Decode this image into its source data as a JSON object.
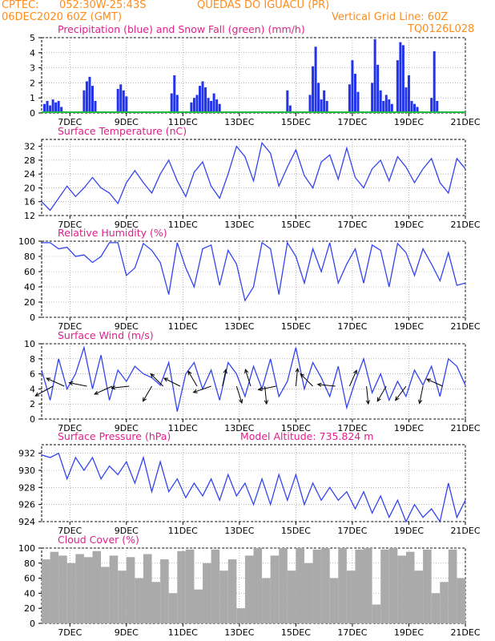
{
  "header": {
    "line1_left": "CPTEC:",
    "coords": "052:30W-25:43S",
    "location": "QUEDAS DO IGUACU (PR)",
    "run_date": "06DEC2020 60Z (GMT)",
    "grid_note": "Vertical Grid Line: 60Z",
    "model_code": "TQ0126L028"
  },
  "colors": {
    "header": "#ff8c1a",
    "title": "#e0208a",
    "line": "#3344ee",
    "precip_bar": "#2233ee",
    "snow": "#22bb44",
    "cloud": "#aaaaaa",
    "wind_arrow": "#000000",
    "grid": "#888888"
  },
  "x_axis": {
    "ticks": [
      "7DEC",
      "9DEC",
      "11DEC",
      "13DEC",
      "15DEC",
      "17DEC",
      "19DEC",
      "21DEC"
    ],
    "range_days": [
      6,
      21
    ]
  },
  "chart_data": [
    {
      "id": "precip",
      "type": "bar",
      "title": "Precipitation (blue) and Snow Fall (green) (mm/h)",
      "ylim": [
        0,
        5
      ],
      "yticks": [
        "0",
        "1",
        "2",
        "3",
        "4",
        "5"
      ],
      "grid": true,
      "series": [
        {
          "name": "Precipitation",
          "x": [
            6.1,
            6.2,
            6.3,
            6.4,
            6.5,
            6.6,
            6.7,
            7.5,
            7.6,
            7.7,
            7.8,
            7.9,
            8.7,
            8.8,
            8.9,
            9.0,
            10.6,
            10.7,
            10.8,
            11.3,
            11.4,
            11.5,
            11.6,
            11.7,
            11.8,
            11.9,
            12.0,
            12.1,
            12.2,
            12.3,
            14.7,
            14.8,
            15.5,
            15.6,
            15.7,
            15.8,
            15.9,
            16.0,
            16.1,
            16.9,
            17.0,
            17.1,
            17.2,
            17.7,
            17.8,
            17.9,
            18.0,
            18.1,
            18.2,
            18.3,
            18.4,
            18.6,
            18.7,
            18.8,
            18.9,
            19.0,
            19.1,
            19.2,
            19.3,
            19.8,
            19.9,
            20.0
          ],
          "values": [
            0.6,
            0.8,
            0.5,
            0.9,
            0.7,
            0.8,
            0.4,
            1.5,
            2.1,
            2.4,
            1.8,
            0.8,
            1.6,
            1.9,
            1.5,
            1.1,
            1.3,
            2.5,
            1.2,
            0.7,
            1.0,
            1.2,
            1.8,
            2.1,
            1.7,
            1.0,
            0.8,
            1.3,
            0.9,
            0.6,
            1.5,
            0.5,
            1.2,
            3.1,
            4.4,
            2.0,
            0.9,
            1.5,
            0.8,
            1.9,
            3.5,
            2.6,
            1.4,
            2.0,
            4.9,
            3.2,
            1.5,
            0.8,
            1.2,
            0.9,
            0.6,
            3.5,
            4.7,
            4.5,
            1.7,
            2.5,
            0.8,
            0.6,
            0.4,
            1.0,
            4.1,
            0.8
          ]
        },
        {
          "name": "Snow Fall",
          "x": [],
          "values": []
        }
      ]
    },
    {
      "id": "temperature",
      "type": "line",
      "title": "Surface Temperature (nC)",
      "ylim": [
        12,
        34
      ],
      "yticks": [
        "12",
        "16",
        "20",
        "24",
        "28",
        "32"
      ],
      "grid": true,
      "series": [
        {
          "name": "",
          "x": [
            6.0,
            6.3,
            6.6,
            6.9,
            7.2,
            7.5,
            7.8,
            8.1,
            8.4,
            8.7,
            9.0,
            9.3,
            9.6,
            9.9,
            10.2,
            10.5,
            10.8,
            11.1,
            11.4,
            11.7,
            12.0,
            12.3,
            12.6,
            12.9,
            13.2,
            13.5,
            13.8,
            14.1,
            14.4,
            14.7,
            15.0,
            15.3,
            15.6,
            15.9,
            16.2,
            16.5,
            16.8,
            17.1,
            17.4,
            17.7,
            18.0,
            18.3,
            18.6,
            18.9,
            19.2,
            19.5,
            19.8,
            20.1,
            20.4,
            20.7,
            21.0
          ],
          "values": [
            16.0,
            13.5,
            17.0,
            20.5,
            17.5,
            20.0,
            23.0,
            20.0,
            18.5,
            15.5,
            21.5,
            25.0,
            21.5,
            18.5,
            24.0,
            28.0,
            22.0,
            17.5,
            24.5,
            27.5,
            20.5,
            17.0,
            24.0,
            32.0,
            29.0,
            22.0,
            33.0,
            30.0,
            20.5,
            26.0,
            31.0,
            23.5,
            20.0,
            27.5,
            29.5,
            22.5,
            31.5,
            23.0,
            20.0,
            25.5,
            28.0,
            22.0,
            29.0,
            26.0,
            21.5,
            25.5,
            28.5,
            21.5,
            18.5,
            28.5,
            25.5
          ]
        }
      ]
    },
    {
      "id": "humidity",
      "type": "line",
      "title": "Relative Humidity (%)",
      "ylim": [
        0,
        100
      ],
      "yticks": [
        "0",
        "20",
        "40",
        "60",
        "80",
        "100"
      ],
      "grid": true,
      "series": [
        {
          "name": "",
          "x": [
            6.0,
            6.3,
            6.6,
            6.9,
            7.2,
            7.5,
            7.8,
            8.1,
            8.4,
            8.7,
            9.0,
            9.3,
            9.6,
            9.9,
            10.2,
            10.5,
            10.8,
            11.1,
            11.4,
            11.7,
            12.0,
            12.3,
            12.6,
            12.9,
            13.2,
            13.5,
            13.8,
            14.1,
            14.4,
            14.7,
            15.0,
            15.3,
            15.6,
            15.9,
            16.2,
            16.5,
            16.8,
            17.1,
            17.4,
            17.7,
            18.0,
            18.3,
            18.6,
            18.9,
            19.2,
            19.5,
            19.8,
            20.1,
            20.4,
            20.7,
            21.0
          ],
          "values": [
            98,
            98,
            90,
            92,
            80,
            82,
            72,
            80,
            98,
            98,
            55,
            65,
            97,
            88,
            72,
            30,
            98,
            65,
            40,
            90,
            95,
            42,
            88,
            70,
            22,
            40,
            98,
            90,
            30,
            98,
            80,
            45,
            90,
            60,
            98,
            45,
            70,
            90,
            45,
            95,
            88,
            40,
            97,
            85,
            55,
            90,
            70,
            48,
            85,
            42,
            45
          ]
        }
      ]
    },
    {
      "id": "wind",
      "type": "line",
      "title": "Surface Wind (m/s)",
      "ylim": [
        0,
        10
      ],
      "yticks": [
        "0",
        "2",
        "4",
        "6",
        "8",
        "10"
      ],
      "grid": true,
      "series": [
        {
          "name": "",
          "x": [
            6.0,
            6.3,
            6.6,
            6.9,
            7.2,
            7.5,
            7.8,
            8.1,
            8.4,
            8.7,
            9.0,
            9.3,
            9.6,
            9.9,
            10.2,
            10.5,
            10.8,
            11.1,
            11.4,
            11.7,
            12.0,
            12.3,
            12.6,
            12.9,
            13.2,
            13.5,
            13.8,
            14.1,
            14.4,
            14.7,
            15.0,
            15.3,
            15.6,
            15.9,
            16.2,
            16.5,
            16.8,
            17.1,
            17.4,
            17.7,
            18.0,
            18.3,
            18.6,
            18.9,
            19.2,
            19.5,
            19.8,
            20.1,
            20.4,
            20.7,
            21.0
          ],
          "values": [
            6.5,
            2.5,
            8.0,
            4.0,
            6.0,
            9.5,
            4.0,
            8.5,
            2.5,
            6.5,
            5.0,
            7.0,
            6.0,
            5.5,
            4.5,
            7.5,
            1.0,
            6.0,
            7.5,
            4.0,
            6.5,
            2.5,
            7.5,
            6.0,
            3.0,
            7.0,
            4.0,
            8.0,
            3.0,
            5.0,
            9.5,
            4.0,
            7.5,
            5.5,
            3.0,
            7.0,
            1.5,
            5.0,
            8.0,
            3.5,
            6.0,
            2.5,
            5.0,
            3.0,
            6.5,
            4.5,
            7.0,
            3.0,
            8.0,
            7.0,
            4.5
          ]
        }
      ],
      "arrows": [
        {
          "x": 6.4,
          "dx": -1,
          "dy": 0.55
        },
        {
          "x": 6.8,
          "dx": -1,
          "dy": -0.45
        },
        {
          "x": 7.6,
          "dx": -1,
          "dy": -0.2
        },
        {
          "x": 8.5,
          "dx": -1,
          "dy": 0.45
        },
        {
          "x": 9.1,
          "dx": -1,
          "dy": 0.1
        },
        {
          "x": 9.9,
          "dx": -0.5,
          "dy": 0.85
        },
        {
          "x": 10.3,
          "dx": -0.7,
          "dy": -0.7
        },
        {
          "x": 10.9,
          "dx": -0.9,
          "dy": -0.45
        },
        {
          "x": 11.5,
          "dx": -0.5,
          "dy": -0.85
        },
        {
          "x": 12.0,
          "dx": -1,
          "dy": 0.35
        },
        {
          "x": 12.4,
          "dx": 0.2,
          "dy": -0.95
        },
        {
          "x": 12.9,
          "dx": 0.3,
          "dy": 0.95
        },
        {
          "x": 13.4,
          "dx": -0.3,
          "dy": -0.95
        },
        {
          "x": 13.9,
          "dx": 0.1,
          "dy": 1
        },
        {
          "x": 14.3,
          "dx": -1,
          "dy": 0.2
        },
        {
          "x": 15.0,
          "dx": 0.1,
          "dy": -1
        },
        {
          "x": 15.6,
          "dx": -0.7,
          "dy": -0.7
        },
        {
          "x": 16.4,
          "dx": -1,
          "dy": -0.1
        },
        {
          "x": 16.9,
          "dx": 0.4,
          "dy": -0.9
        },
        {
          "x": 17.5,
          "dx": 0.1,
          "dy": 1
        },
        {
          "x": 18.2,
          "dx": -0.5,
          "dy": 0.85
        },
        {
          "x": 18.9,
          "dx": -0.6,
          "dy": 0.8
        },
        {
          "x": 19.5,
          "dx": -0.2,
          "dy": 0.98
        },
        {
          "x": 20.2,
          "dx": -0.9,
          "dy": -0.4
        }
      ]
    },
    {
      "id": "pressure",
      "type": "line",
      "title": "Surface Pressure (hPa)",
      "subtitle": "Model Altitude: 735.824 m",
      "ylim": [
        924,
        933
      ],
      "yticks": [
        "924",
        "926",
        "928",
        "930",
        "932"
      ],
      "grid": true,
      "series": [
        {
          "name": "",
          "x": [
            6.0,
            6.3,
            6.6,
            6.9,
            7.2,
            7.5,
            7.8,
            8.1,
            8.4,
            8.7,
            9.0,
            9.3,
            9.6,
            9.9,
            10.2,
            10.5,
            10.8,
            11.1,
            11.4,
            11.7,
            12.0,
            12.3,
            12.6,
            12.9,
            13.2,
            13.5,
            13.8,
            14.1,
            14.4,
            14.7,
            15.0,
            15.3,
            15.6,
            15.9,
            16.2,
            16.5,
            16.8,
            17.1,
            17.4,
            17.7,
            18.0,
            18.3,
            18.6,
            18.9,
            19.2,
            19.5,
            19.8,
            20.1,
            20.4,
            20.7,
            21.0
          ],
          "values": [
            931.8,
            931.5,
            932.0,
            929.0,
            931.5,
            930.0,
            931.5,
            929.0,
            930.5,
            929.5,
            931.0,
            928.5,
            931.5,
            927.5,
            931.0,
            927.5,
            929.0,
            926.8,
            928.5,
            927.0,
            929.0,
            926.5,
            929.5,
            927.0,
            928.5,
            926.0,
            929.0,
            926.0,
            929.5,
            926.5,
            929.5,
            926.0,
            928.5,
            926.5,
            928.0,
            926.5,
            927.5,
            925.5,
            927.5,
            925.0,
            927.0,
            924.5,
            926.5,
            924.0,
            926.0,
            924.5,
            925.5,
            924.0,
            928.5,
            924.5,
            926.5
          ]
        }
      ]
    },
    {
      "id": "cloud",
      "type": "bar",
      "title": "Cloud Cover (%)",
      "ylim": [
        0,
        100
      ],
      "yticks": [
        "0",
        "20",
        "40",
        "60",
        "80",
        "100"
      ],
      "grid": true,
      "series": [
        {
          "name": "",
          "x": [
            6.0,
            6.3,
            6.6,
            6.9,
            7.2,
            7.5,
            7.8,
            8.1,
            8.4,
            8.7,
            9.0,
            9.3,
            9.6,
            9.9,
            10.2,
            10.5,
            10.8,
            11.1,
            11.4,
            11.7,
            12.0,
            12.3,
            12.6,
            12.9,
            13.2,
            13.5,
            13.8,
            14.1,
            14.4,
            14.7,
            15.0,
            15.3,
            15.6,
            15.9,
            16.2,
            16.5,
            16.8,
            17.1,
            17.4,
            17.7,
            18.0,
            18.3,
            18.6,
            18.9,
            19.2,
            19.5,
            19.8,
            20.1,
            20.4,
            20.7,
            21.0
          ],
          "values": [
            85,
            95,
            90,
            80,
            92,
            88,
            96,
            75,
            90,
            70,
            88,
            60,
            92,
            55,
            85,
            40,
            96,
            98,
            45,
            80,
            98,
            70,
            85,
            20,
            90,
            100,
            60,
            90,
            100,
            70,
            100,
            80,
            98,
            100,
            60,
            100,
            70,
            98,
            100,
            25,
            98,
            100,
            90,
            95,
            70,
            98,
            40,
            55,
            98,
            60,
            20
          ]
        }
      ]
    }
  ]
}
